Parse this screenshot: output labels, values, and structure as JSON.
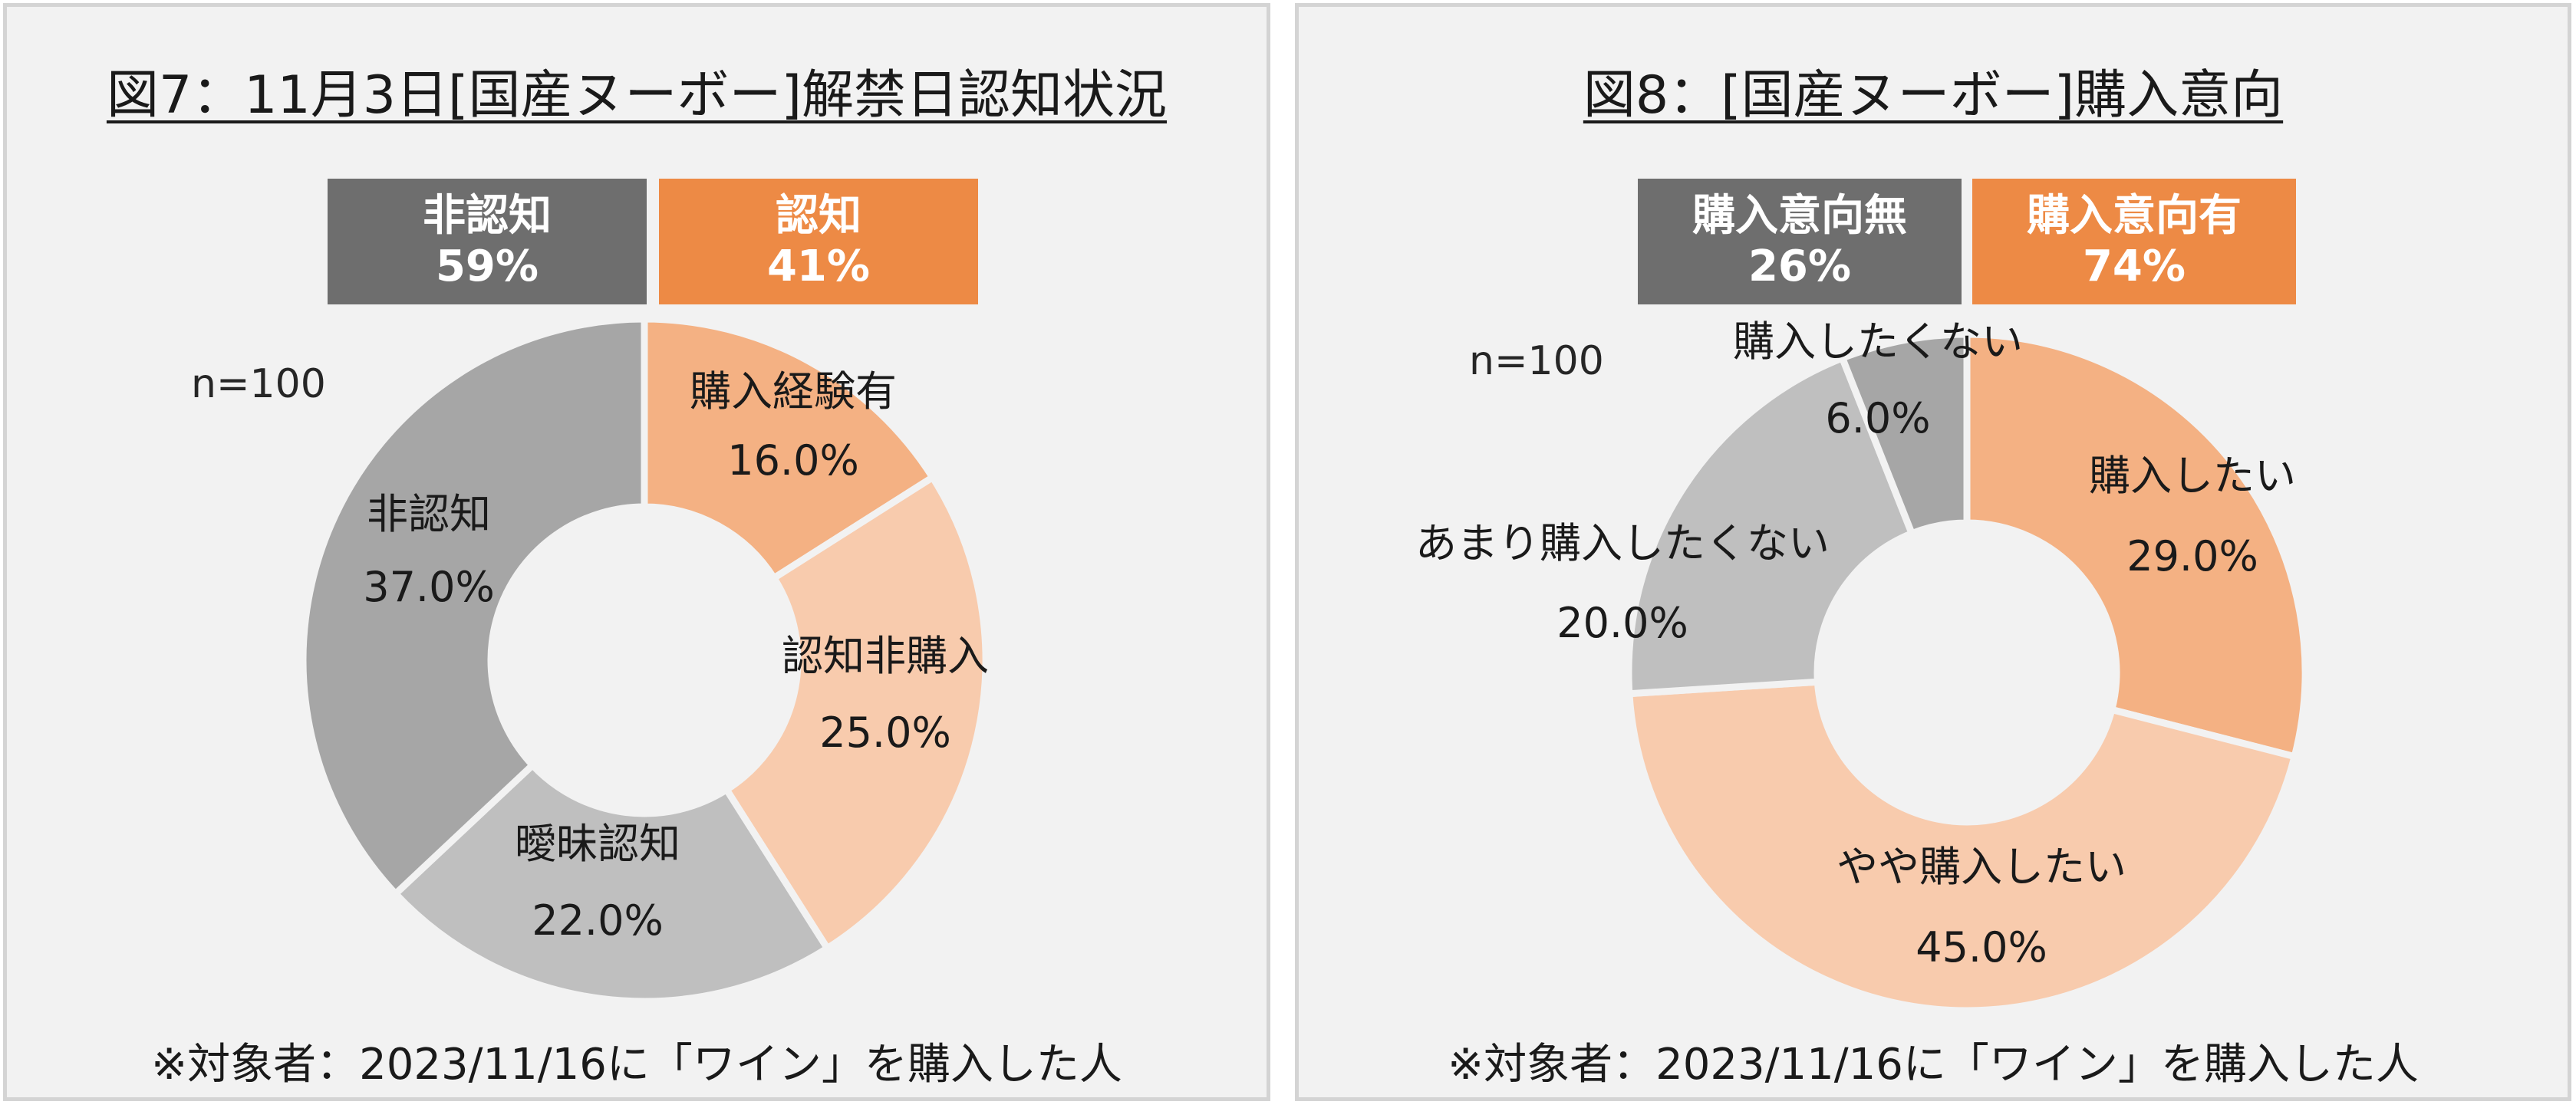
{
  "colors": {
    "dark_gray": "#6e6e6e",
    "orange": "#ed8a45",
    "panel_bg": "#f2f2f2"
  },
  "chart_data": [
    {
      "type": "pie",
      "donut": true,
      "title": "図7：11月3日[国産ヌーボー]解禁日認知状況",
      "n_label": "n=100",
      "footnote": "※対象者：2023/11/16に「ワイン」を購入した人",
      "summary": [
        {
          "label": "非認知",
          "value": "59%",
          "color": "#6e6e6e"
        },
        {
          "label": "認知",
          "value": "41%",
          "color": "#ed8a45"
        }
      ],
      "segments": [
        {
          "label": "購入経験有",
          "value": 16.0,
          "value_text": "16.0%",
          "color": "#f4b183"
        },
        {
          "label": "認知非購入",
          "value": 25.0,
          "value_text": "25.0%",
          "color": "#f8cbad"
        },
        {
          "label": "曖昧認知",
          "value": 22.0,
          "value_text": "22.0%",
          "color": "#bfbfbf"
        },
        {
          "label": "非認知",
          "value": 37.0,
          "value_text": "37.0%",
          "color": "#a6a6a6"
        }
      ]
    },
    {
      "type": "pie",
      "donut": true,
      "title": "図8：[国産ヌーボー]購入意向",
      "n_label": "n=100",
      "footnote": "※対象者：2023/11/16に「ワイン」を購入した人",
      "summary": [
        {
          "label": "購入意向無",
          "value": "26%",
          "color": "#6e6e6e"
        },
        {
          "label": "購入意向有",
          "value": "74%",
          "color": "#ed8a45"
        }
      ],
      "segments": [
        {
          "label": "購入したい",
          "value": 29.0,
          "value_text": "29.0%",
          "color": "#f4b183"
        },
        {
          "label": "やや購入したい",
          "value": 45.0,
          "value_text": "45.0%",
          "color": "#f8cbad"
        },
        {
          "label": "あまり購入したくない",
          "value": 20.0,
          "value_text": "20.0%",
          "color": "#bfbfbf"
        },
        {
          "label": "購入したくない",
          "value": 6.0,
          "value_text": "6.0%",
          "color": "#a6a6a6"
        }
      ]
    }
  ]
}
